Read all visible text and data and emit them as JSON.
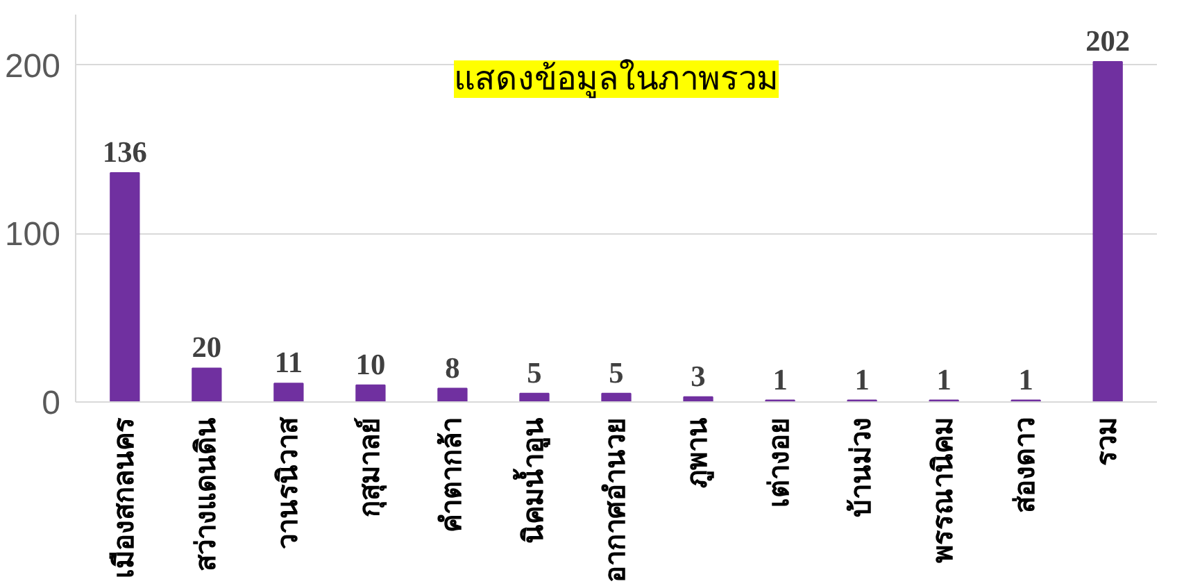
{
  "chart_data": {
    "type": "bar",
    "title": "แสดงข้อมูลในภาพรวม",
    "categories": [
      "เมืองสกลนคร",
      "สว่างแดนดิน",
      "วานรนิวาส",
      "กุสุมาลย์",
      "คำตากล้า",
      "นิคมน้ำอูน",
      "อากาศอำนวย",
      "ภูพาน",
      "เต่างอย",
      "บ้านม่วง",
      "พรรณานิคม",
      "ส่องดาว",
      "รวม"
    ],
    "values": [
      136,
      20,
      11,
      10,
      8,
      5,
      5,
      3,
      1,
      1,
      1,
      1,
      202
    ],
    "color": "#7030a0",
    "ylim": [
      0,
      230
    ],
    "yticks": [
      0,
      100,
      200
    ],
    "grid": "y",
    "data_labels": true
  }
}
